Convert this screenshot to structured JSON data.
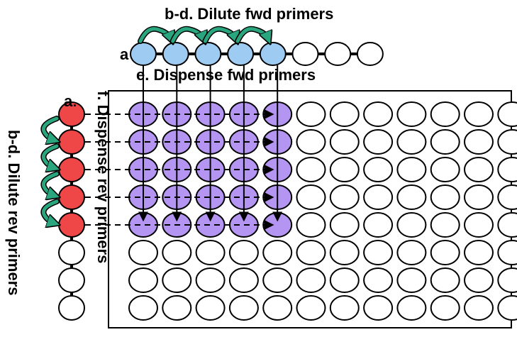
{
  "labels": {
    "top_title": "b-d.  Dilute fwd primers",
    "top_marker": "a",
    "dispense_fwd": "e. Dispense fwd primers",
    "left_marker": "a",
    "left_marker_dot": ".",
    "dispense_rev": "f. Dispense rev primers",
    "dilute_rev": "b-d.  Dilute rev primers"
  },
  "plate": {
    "rows": 8,
    "cols": 12
  },
  "fwd_tube_strip": {
    "tubes": 8,
    "filled": 5,
    "dilution_arrows": 4
  },
  "rev_tube_strip": {
    "tubes": 8,
    "filled": 5,
    "dilution_arrows": 4
  },
  "dispense": {
    "fwd_columns": 5,
    "rev_rows": 5
  },
  "colors": {
    "fwd_primer": "#9ecbf2",
    "rev_primer": "#ef4747",
    "filled_well": "#b595f2",
    "dilution_arrow": "#2aa67f",
    "empty": "#ffffff",
    "outline": "#000000"
  }
}
